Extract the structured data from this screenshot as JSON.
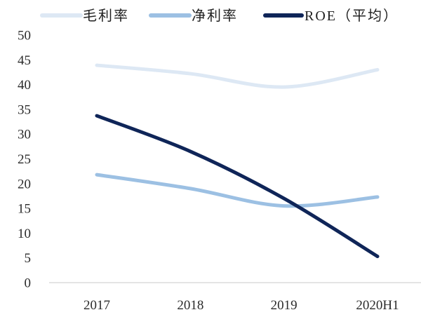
{
  "chart_data": {
    "type": "line",
    "categories": [
      "2017",
      "2018",
      "2019",
      "2020H1"
    ],
    "ylim": [
      0,
      50
    ],
    "yticks": [
      0,
      5,
      10,
      15,
      20,
      25,
      30,
      35,
      40,
      45,
      50
    ],
    "grid": false,
    "legend_position": "top",
    "series": [
      {
        "name": "毛利率",
        "values": [
          43.9,
          42.2,
          39.5,
          43.0
        ],
        "color": "#dde8f4"
      },
      {
        "name": "净利率",
        "values": [
          21.8,
          19.0,
          15.5,
          17.3
        ],
        "color": "#9cc0e3"
      },
      {
        "name": "ROE（平均）",
        "values": [
          33.7,
          26.5,
          17.0,
          5.3
        ],
        "color": "#0f2558"
      }
    ]
  }
}
